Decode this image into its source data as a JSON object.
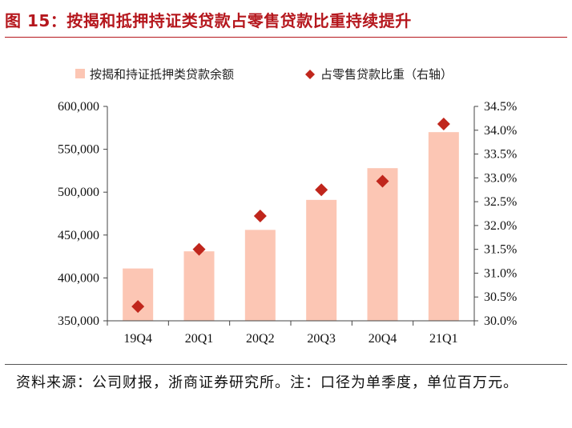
{
  "figure": {
    "title": "图 15：按揭和抵押持证类贷款占零售贷款比重持续提升",
    "source": "资料来源：公司财报，浙商证券研究所。注：口径为单季度，单位百万元。"
  },
  "colors": {
    "title": "#b5171d",
    "bar": "#fcc6b4",
    "marker": "#c0261c",
    "axis": "#444444"
  },
  "chart_data": {
    "type": "bar",
    "categories": [
      "19Q4",
      "20Q1",
      "20Q2",
      "20Q3",
      "20Q4",
      "21Q1"
    ],
    "series": [
      {
        "name": "按揭和持证抵押类贷款余额",
        "type": "bar",
        "axis": "left",
        "values": [
          411000,
          431000,
          456000,
          491000,
          528000,
          570000
        ]
      },
      {
        "name": "占零售贷款比重（右轴）",
        "type": "scatter",
        "axis": "right",
        "marker": "diamond",
        "values": [
          30.3,
          31.5,
          32.2,
          32.75,
          32.93,
          34.13
        ]
      }
    ],
    "y_left": {
      "min": 350000,
      "max": 600000,
      "step": 50000,
      "ticks": [
        "350,000",
        "400,000",
        "450,000",
        "500,000",
        "550,000",
        "600,000"
      ]
    },
    "y_right": {
      "min": 30.0,
      "max": 34.5,
      "step": 0.5,
      "ticks": [
        "30.0%",
        "30.5%",
        "31.0%",
        "31.5%",
        "32.0%",
        "32.5%",
        "33.0%",
        "33.5%",
        "34.0%",
        "34.5%"
      ]
    },
    "legend": "top",
    "grid": false
  }
}
